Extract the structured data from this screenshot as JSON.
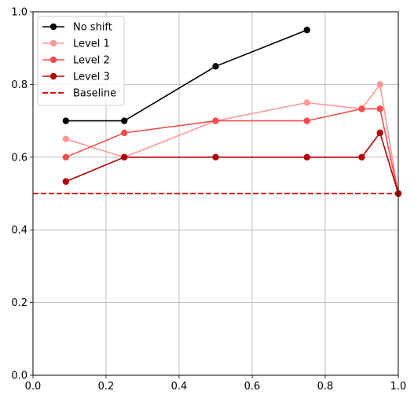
{
  "chart_data": {
    "type": "line",
    "title": "",
    "xlabel": "",
    "ylabel": "",
    "xlim": [
      0,
      1
    ],
    "ylim": [
      0,
      1
    ],
    "xticks": [
      "0.0",
      "0.2",
      "0.4",
      "0.6",
      "0.8",
      "1.0"
    ],
    "yticks": [
      "0.0",
      "0.2",
      "0.4",
      "0.6",
      "0.8",
      "1.0"
    ],
    "grid": true,
    "legend_position": "top-left",
    "series": [
      {
        "name": "No shift",
        "color": "#000000",
        "marker": "circle",
        "x": [
          0.09,
          0.25,
          0.5,
          0.75
        ],
        "y": [
          0.7,
          0.7,
          0.85,
          0.95
        ]
      },
      {
        "name": "Level 1",
        "color": "#ff9999",
        "marker": "circle",
        "x": [
          0.09,
          0.25,
          0.5,
          0.75,
          0.9,
          0.95,
          1.0
        ],
        "y": [
          0.65,
          0.6,
          0.7,
          0.75,
          0.733,
          0.8,
          0.5
        ]
      },
      {
        "name": "Level 2",
        "color": "#f24d4d",
        "marker": "circle",
        "x": [
          0.09,
          0.25,
          0.5,
          0.75,
          0.9,
          0.95,
          1.0
        ],
        "y": [
          0.6,
          0.667,
          0.7,
          0.7,
          0.733,
          0.733,
          0.5
        ]
      },
      {
        "name": "Level 3",
        "color": "#b30000",
        "marker": "circle",
        "x": [
          0.09,
          0.25,
          0.5,
          0.75,
          0.9,
          0.95,
          1.0
        ],
        "y": [
          0.533,
          0.6,
          0.6,
          0.6,
          0.6,
          0.667,
          0.5
        ]
      }
    ],
    "baseline": {
      "name": "Baseline",
      "y": 0.5,
      "color": "#e00000",
      "style": "dashed"
    }
  }
}
